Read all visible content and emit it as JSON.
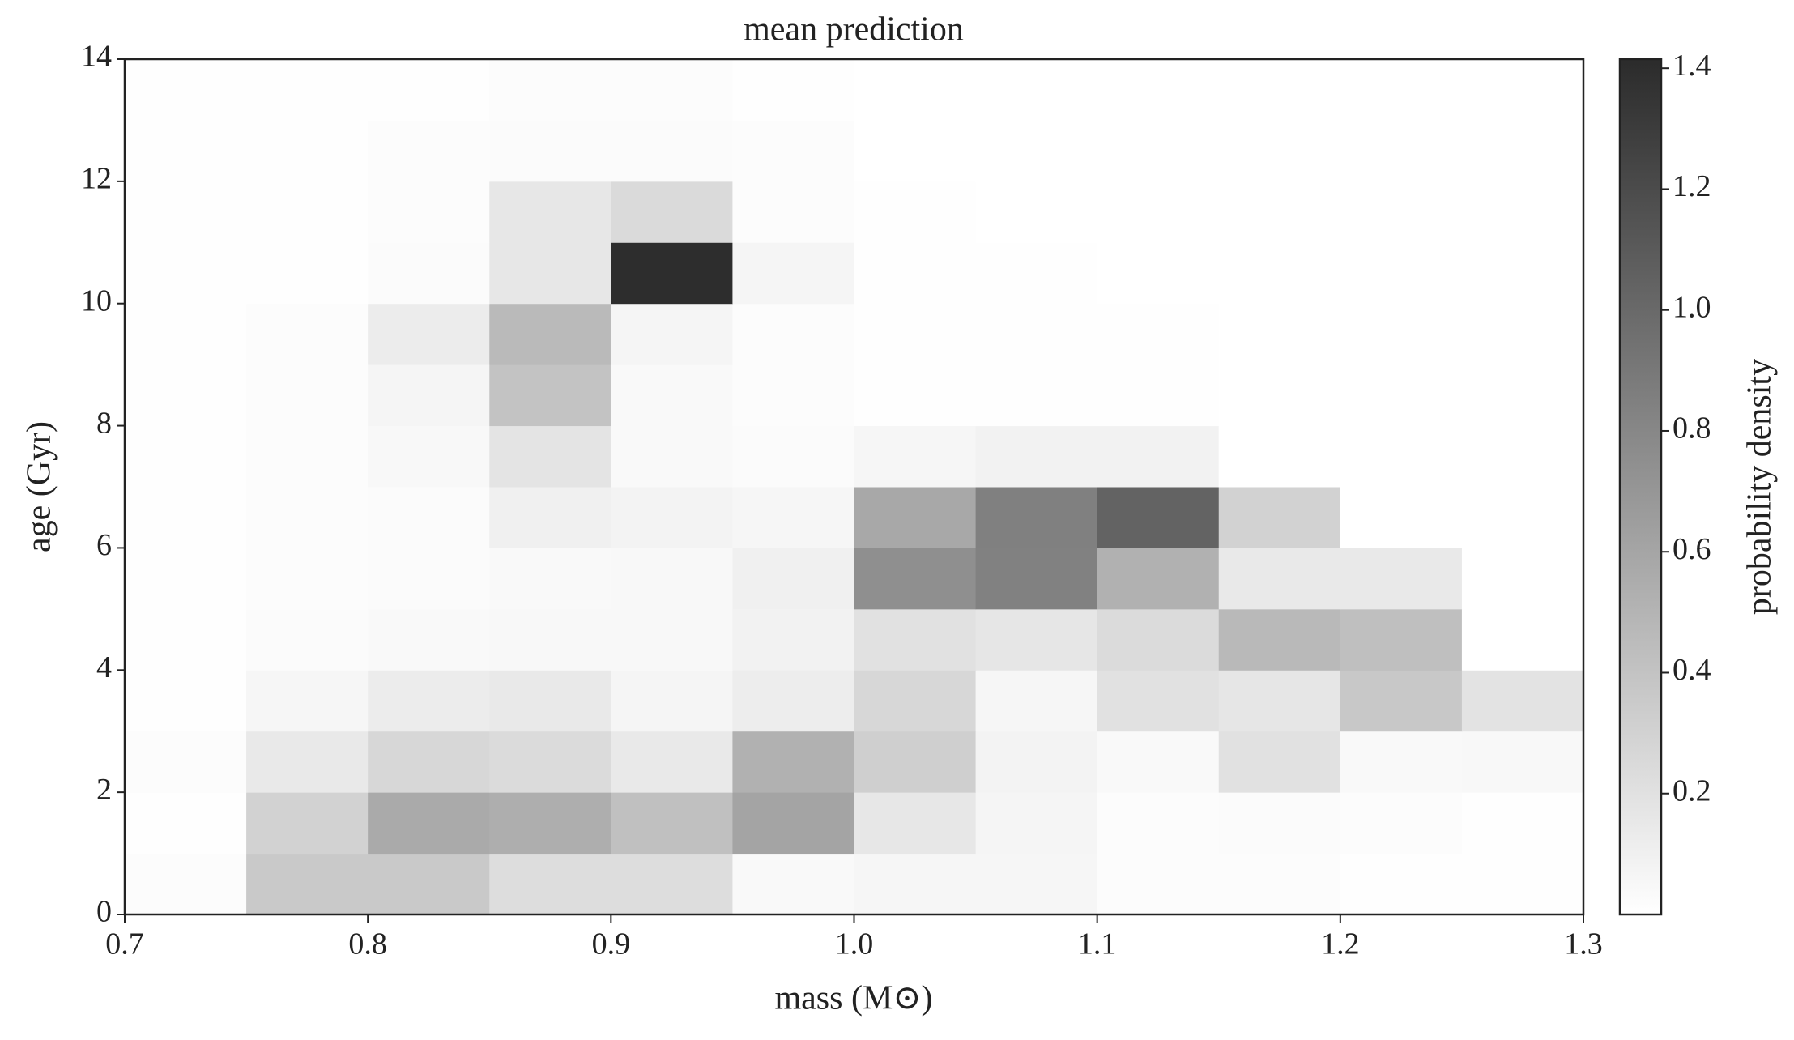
{
  "chart_data": {
    "type": "heatmap",
    "title": "mean prediction",
    "x_label": "mass (M⊙)",
    "y_label": "age (Gyr)",
    "colorbar_label": "probability density",
    "xbins": [
      0.7,
      0.75,
      0.8,
      0.85,
      0.9,
      0.95,
      1.0,
      1.05,
      1.1,
      1.15,
      1.2,
      1.25,
      1.3
    ],
    "ybins": [
      0,
      1,
      2,
      3,
      4,
      5,
      6,
      7,
      8,
      9,
      10,
      11,
      12,
      13,
      14
    ],
    "values": [
      [
        0.02,
        0.36,
        0.36,
        0.23,
        0.23,
        0.04,
        0.06,
        0.06,
        0.02,
        0.02,
        0.01,
        0.01
      ],
      [
        0.01,
        0.3,
        0.57,
        0.54,
        0.42,
        0.61,
        0.16,
        0.07,
        0.02,
        0.03,
        0.02,
        0.01
      ],
      [
        0.02,
        0.15,
        0.27,
        0.24,
        0.15,
        0.52,
        0.32,
        0.08,
        0.04,
        0.2,
        0.04,
        0.05
      ],
      [
        0.01,
        0.06,
        0.13,
        0.15,
        0.07,
        0.12,
        0.27,
        0.06,
        0.2,
        0.17,
        0.37,
        0.19
      ],
      [
        0.01,
        0.03,
        0.04,
        0.05,
        0.05,
        0.09,
        0.2,
        0.17,
        0.24,
        0.47,
        0.43,
        0
      ],
      [
        0.01,
        0.02,
        0.03,
        0.04,
        0.05,
        0.1,
        0.75,
        0.84,
        0.52,
        0.15,
        0.15,
        0
      ],
      [
        0.01,
        0.02,
        0.03,
        0.1,
        0.08,
        0.06,
        0.58,
        0.85,
        1.04,
        0.3,
        0,
        0
      ],
      [
        0.01,
        0.02,
        0.05,
        0.18,
        0.04,
        0.03,
        0.06,
        0.09,
        0.09,
        0,
        0,
        0
      ],
      [
        0.01,
        0.02,
        0.07,
        0.4,
        0.04,
        0.02,
        0.01,
        0.01,
        0.01,
        0,
        0,
        0
      ],
      [
        0.01,
        0.02,
        0.13,
        0.46,
        0.07,
        0.02,
        0.01,
        0.01,
        0.01,
        0,
        0,
        0
      ],
      [
        0.01,
        0.01,
        0.03,
        0.16,
        1.4,
        0.07,
        0.01,
        0.01,
        0,
        0,
        0,
        0
      ],
      [
        0.01,
        0.01,
        0.02,
        0.16,
        0.25,
        0.02,
        0.01,
        0,
        0,
        0,
        0,
        0
      ],
      [
        0.01,
        0.01,
        0.02,
        0.03,
        0.03,
        0.02,
        0,
        0,
        0,
        0,
        0,
        0
      ],
      [
        0.01,
        0.01,
        0.01,
        0.02,
        0.02,
        0.01,
        0,
        0,
        0,
        0,
        0,
        0
      ]
    ],
    "xlim": [
      0.7,
      1.3
    ],
    "xticks": [
      0.7,
      0.8,
      0.9,
      {
        "value": 1,
        "label": "1.0"
      },
      1.1,
      1.2,
      1.3
    ],
    "ylim": [
      0,
      14
    ],
    "yticks": [
      0,
      2,
      4,
      6,
      8,
      10,
      12,
      14
    ],
    "clim": [
      0,
      1.415
    ],
    "cticks": [
      0.2,
      0.4,
      0.6,
      0.8,
      {
        "value": 1,
        "label": "1.0"
      },
      1.2,
      1.4
    ],
    "colors": [
      "#ffffff",
      "#2b2b2b"
    ]
  }
}
